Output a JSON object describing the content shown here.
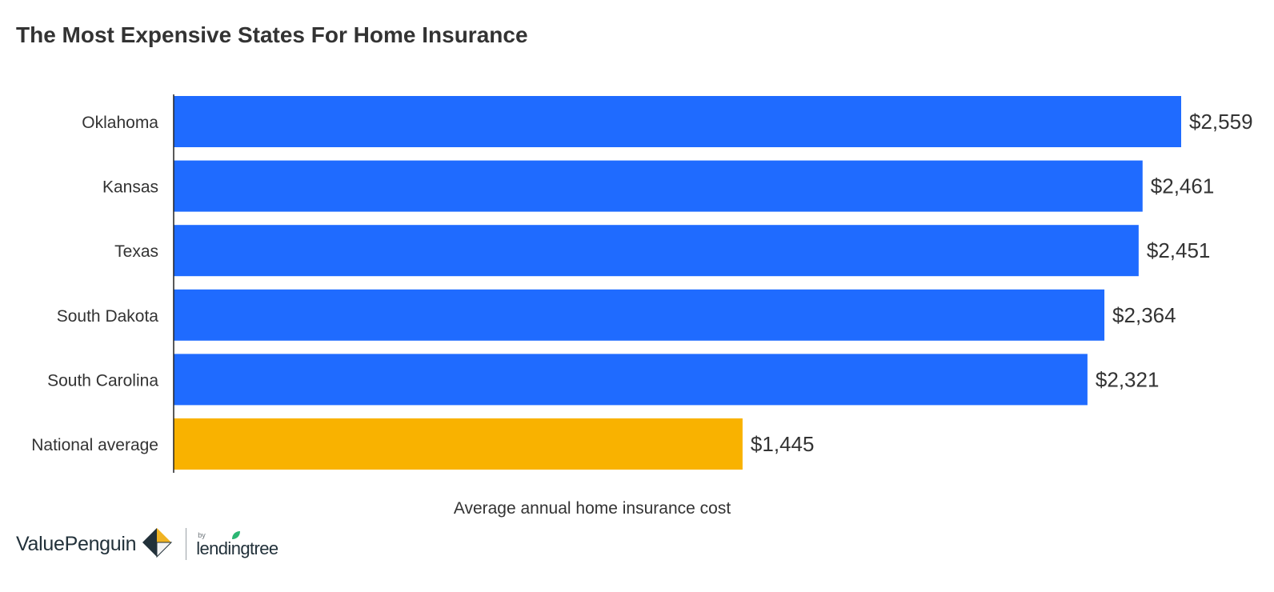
{
  "title": "The Most Expensive States For Home Insurance",
  "chart_data": {
    "type": "bar",
    "orientation": "horizontal",
    "categories": [
      "Oklahoma",
      "Kansas",
      "Texas",
      "South Dakota",
      "South Carolina",
      "National average"
    ],
    "values": [
      2559,
      2461,
      2451,
      2364,
      2321,
      1445
    ],
    "value_labels": [
      "$2,559",
      "$2,461",
      "$2,451",
      "$2,364",
      "$2,321",
      "$1,445"
    ],
    "bar_colors": [
      "#1f6bff",
      "#1f6bff",
      "#1f6bff",
      "#1f6bff",
      "#1f6bff",
      "#f9b200"
    ],
    "xlabel": "Average annual home insurance cost",
    "ylabel": "",
    "xlim": [
      0,
      2559
    ],
    "grid": false,
    "legend": "none"
  },
  "footer": {
    "brand": "ValuePenguin",
    "by": "by",
    "partner": "lendingtree"
  },
  "colors": {
    "state_bar": "#1f6bff",
    "average_bar": "#f9b200",
    "text": "#333333",
    "logo_navy": "#22313a",
    "logo_gold": "#f0b323",
    "leaf_green": "#2bb673"
  }
}
